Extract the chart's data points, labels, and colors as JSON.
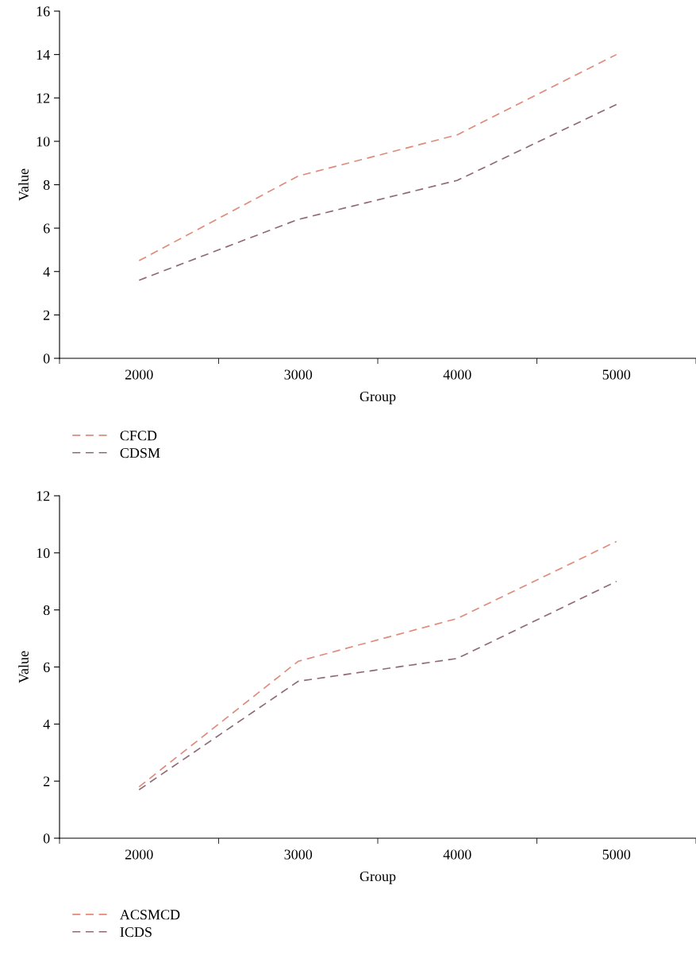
{
  "chart_data": [
    {
      "type": "line",
      "xlabel": "Group",
      "ylabel": "Value",
      "categories": [
        "2000",
        "3000",
        "4000",
        "5000"
      ],
      "series": [
        {
          "name": "CFCD",
          "color": "#e08a7a",
          "values": [
            4.5,
            8.4,
            10.3,
            14.0
          ]
        },
        {
          "name": "CDSM",
          "color": "#8f6a78",
          "values": [
            3.6,
            6.4,
            8.2,
            11.7
          ]
        }
      ],
      "ylim": [
        0,
        16
      ],
      "yticks": [
        0,
        2,
        4,
        6,
        8,
        10,
        12,
        14,
        16
      ],
      "grid": false,
      "legend": "bottom left",
      "marker": "none",
      "line_style": "dashed"
    },
    {
      "type": "line",
      "xlabel": "Group",
      "ylabel": "Value",
      "categories": [
        "2000",
        "3000",
        "4000",
        "5000"
      ],
      "series": [
        {
          "name": "ACSMCD",
          "color": "#e08a7a",
          "values": [
            1.8,
            6.2,
            7.7,
            10.4
          ]
        },
        {
          "name": "ICDS",
          "color": "#8f6a78",
          "values": [
            1.7,
            5.5,
            6.3,
            9.0
          ]
        }
      ],
      "ylim": [
        0,
        12
      ],
      "yticks": [
        0,
        2,
        4,
        6,
        8,
        10,
        12
      ],
      "grid": false,
      "legend": "bottom left",
      "marker": "none",
      "line_style": "dashed"
    }
  ]
}
